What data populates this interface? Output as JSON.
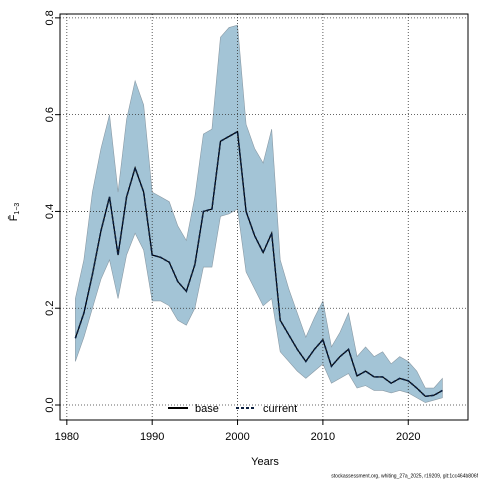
{
  "chart_data": {
    "type": "line",
    "x_label": "Years",
    "y_label": "F̄",
    "y_label_sub": "1−3",
    "footnote": "stockassessment.org, whiting_27a_2025, r19209, git:1cc464b806f",
    "x": [
      1981,
      1982,
      1983,
      1984,
      1985,
      1986,
      1987,
      1988,
      1989,
      1990,
      1991,
      1992,
      1993,
      1994,
      1995,
      1996,
      1997,
      1998,
      1999,
      2000,
      2001,
      2002,
      2003,
      2004,
      2005,
      2006,
      2007,
      2008,
      2009,
      2010,
      2011,
      2012,
      2013,
      2014,
      2015,
      2016,
      2017,
      2018,
      2019,
      2020,
      2021,
      2022,
      2023,
      2024
    ],
    "series": [
      {
        "name": "base",
        "color": "#000000",
        "dash": false,
        "values": [
          0.138,
          0.19,
          0.27,
          0.36,
          0.43,
          0.31,
          0.43,
          0.49,
          0.44,
          0.31,
          0.305,
          0.295,
          0.255,
          0.235,
          0.29,
          0.4,
          0.405,
          0.545,
          0.555,
          0.565,
          0.4,
          0.35,
          0.315,
          0.355,
          0.175,
          0.145,
          0.115,
          0.09,
          0.115,
          0.135,
          0.08,
          0.1,
          0.115,
          0.06,
          0.07,
          0.058,
          0.058,
          0.045,
          0.055,
          0.05,
          0.035,
          0.018,
          0.02,
          0.03
        ]
      },
      {
        "name": "current",
        "color": "#0b1f3f",
        "dash": true,
        "values": [
          0.138,
          0.19,
          0.27,
          0.36,
          0.43,
          0.31,
          0.43,
          0.49,
          0.44,
          0.31,
          0.305,
          0.295,
          0.255,
          0.235,
          0.29,
          0.4,
          0.405,
          0.545,
          0.555,
          0.565,
          0.4,
          0.35,
          0.315,
          0.355,
          0.175,
          0.145,
          0.115,
          0.09,
          0.115,
          0.135,
          0.08,
          0.1,
          0.115,
          0.06,
          0.07,
          0.058,
          0.058,
          0.045,
          0.055,
          0.05,
          0.035,
          0.018,
          0.02,
          0.03
        ]
      }
    ],
    "band": {
      "color": "#a3c4d6",
      "edge": "#8a9aa5",
      "upper": [
        0.22,
        0.3,
        0.44,
        0.53,
        0.6,
        0.44,
        0.59,
        0.67,
        0.62,
        0.44,
        0.43,
        0.42,
        0.37,
        0.34,
        0.43,
        0.56,
        0.57,
        0.76,
        0.78,
        0.785,
        0.58,
        0.53,
        0.5,
        0.57,
        0.3,
        0.24,
        0.19,
        0.14,
        0.18,
        0.215,
        0.12,
        0.15,
        0.19,
        0.1,
        0.12,
        0.1,
        0.11,
        0.085,
        0.1,
        0.09,
        0.07,
        0.035,
        0.035,
        0.055
      ],
      "lower": [
        0.09,
        0.14,
        0.2,
        0.26,
        0.3,
        0.22,
        0.31,
        0.355,
        0.32,
        0.215,
        0.215,
        0.205,
        0.175,
        0.165,
        0.2,
        0.285,
        0.285,
        0.39,
        0.395,
        0.405,
        0.275,
        0.24,
        0.205,
        0.22,
        0.11,
        0.09,
        0.07,
        0.055,
        0.07,
        0.085,
        0.045,
        0.055,
        0.065,
        0.035,
        0.04,
        0.03,
        0.03,
        0.025,
        0.03,
        0.025,
        0.015,
        0.005,
        0.01,
        0.015
      ]
    },
    "xlim": [
      1979.2,
      2027
    ],
    "xticks": [
      1980,
      1990,
      2000,
      2010,
      2020
    ],
    "ylim": [
      -0.031,
      0.808
    ],
    "yticks": [
      {
        "value": 0,
        "label": "0.0"
      },
      0.2,
      0.4,
      0.6,
      0.8
    ],
    "grid": true,
    "legend": "bottom"
  }
}
